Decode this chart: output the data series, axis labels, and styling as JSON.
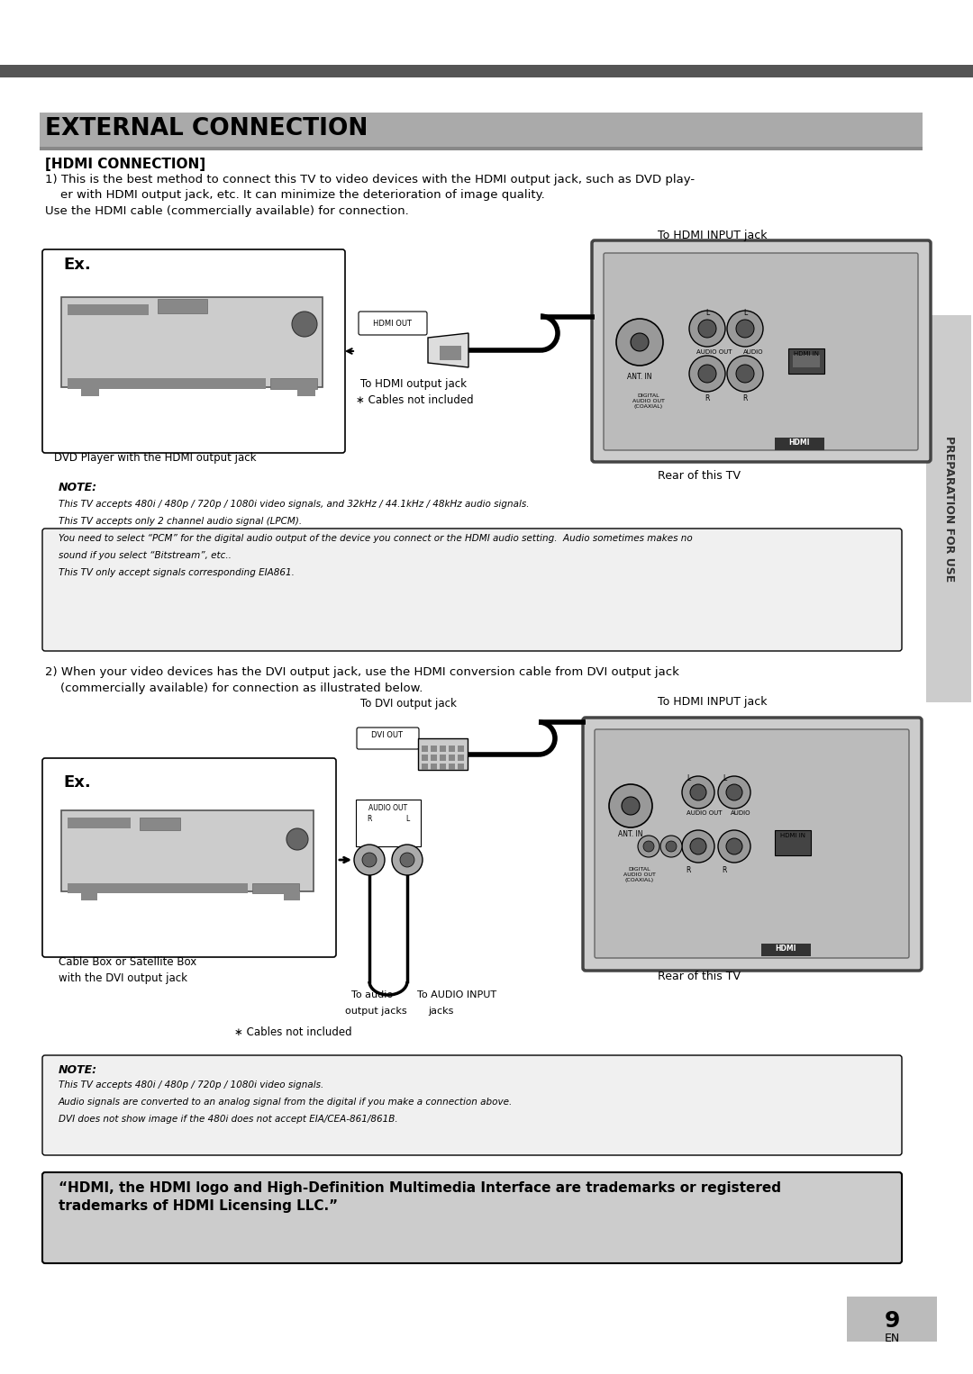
{
  "page_bg": "#ffffff",
  "top_bar_color": "#555555",
  "title": "EXTERNAL CONNECTION",
  "title_bg": "#aaaaaa",
  "section1_header": "[HDMI CONNECTION]",
  "section1_text1": "1) This is the best method to connect this TV to video devices with the HDMI output jack, such as DVD play-",
  "section1_text2": "    er with HDMI output jack, etc. It can minimize the deterioration of image quality.",
  "section1_text3": "Use the HDMI cable (commercially available) for connection.",
  "note1_title": "NOTE:",
  "note1_line1": "This TV accepts 480i / 480p / 720p / 1080i video signals, and 32kHz / 44.1kHz / 48kHz audio signals.",
  "note1_line2": "This TV accepts only 2 channel audio signal (LPCM).",
  "note1_line3": "You need to select “PCM” for the digital audio output of the device you connect or the HDMI audio setting.  Audio sometimes makes no",
  "note1_line4": "sound if you select “Bitstream”, etc..",
  "note1_line5": "This TV only accept signals corresponding EIA861.",
  "section2_text1": "2) When your video devices has the DVI output jack, use the HDMI conversion cable from DVI output jack",
  "section2_text2": "    (commercially available) for connection as illustrated below.",
  "note2_title": "NOTE:",
  "note2_line1": "This TV accepts 480i / 480p / 720p / 1080i video signals.",
  "note2_line2": "Audio signals are converted to an analog signal from the digital if you make a connection above.",
  "note2_line3": "DVI does not show image if the 480i does not accept EIA/CEA-861/861B.",
  "hdmi_text_line1": "“HDMI, the HDMI logo and High-Definition Multimedia Interface are trademarks or registered",
  "hdmi_text_line2": "trademarks of HDMI Licensing LLC.”",
  "page_num": "9",
  "en_label": "EN",
  "sidebar_text": "PREPARATION FOR USE",
  "sidebar_color": "#333333",
  "note_bg": "#f0f0f0",
  "hdmi_box_color": "#cccccc",
  "panel_outer_color": "#cccccc",
  "panel_inner_color": "#bbbbbb"
}
